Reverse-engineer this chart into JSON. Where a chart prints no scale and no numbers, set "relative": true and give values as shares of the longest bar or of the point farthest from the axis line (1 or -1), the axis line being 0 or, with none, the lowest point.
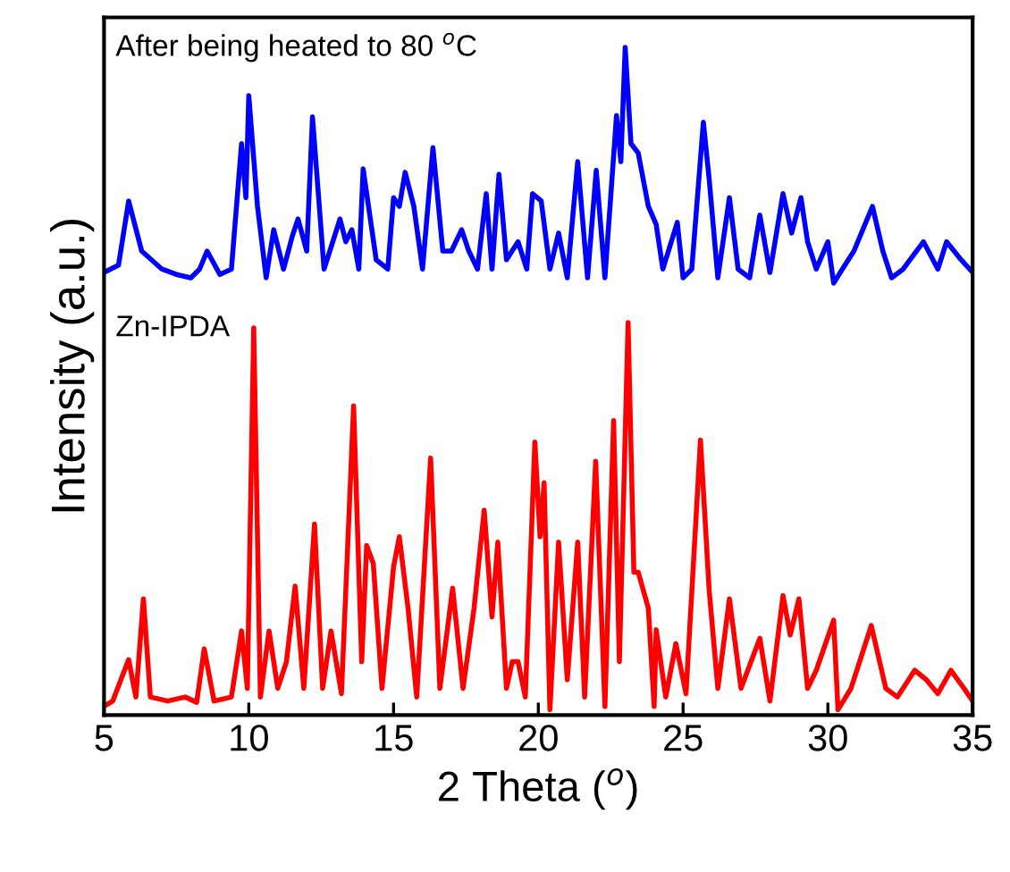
{
  "chart_data": {
    "type": "line",
    "relative": true,
    "xlabel": "2 Theta ($^{o}$)",
    "ylabel": "Intensity (a.u.)",
    "xlim": [
      5,
      35
    ],
    "xticks": [
      5,
      10,
      15,
      20,
      25,
      30,
      35
    ],
    "grid": false,
    "legend": false,
    "marker": "none",
    "line_style": "solid",
    "series": [
      {
        "name": "After being heated to 80 $^{o}$C",
        "color": "#0000ff",
        "x": [
          5.0,
          5.5,
          5.85,
          6.3,
          7.0,
          7.5,
          8.0,
          8.3,
          8.56,
          9.0,
          9.4,
          9.75,
          9.9,
          10.0,
          10.3,
          10.6,
          10.86,
          11.2,
          11.5,
          11.7,
          12.0,
          12.2,
          12.6,
          13.15,
          13.35,
          13.56,
          13.8,
          13.95,
          14.4,
          14.8,
          15.0,
          15.2,
          15.4,
          15.7,
          16.0,
          16.36,
          16.7,
          17.0,
          17.35,
          17.6,
          17.9,
          18.2,
          18.4,
          18.64,
          18.9,
          19.3,
          19.6,
          19.8,
          20.1,
          20.4,
          20.7,
          21.0,
          21.36,
          21.7,
          22.0,
          22.3,
          22.7,
          22.85,
          23.0,
          23.2,
          23.45,
          23.8,
          24.07,
          24.3,
          24.8,
          25.0,
          25.3,
          25.7,
          25.9,
          26.2,
          26.6,
          26.9,
          27.3,
          27.65,
          28.0,
          28.45,
          28.75,
          29.07,
          29.3,
          29.6,
          30.0,
          30.2,
          30.5,
          30.9,
          31.54,
          31.9,
          32.2,
          32.6,
          33.3,
          33.8,
          34.1,
          34.6,
          35.0
        ],
        "values": [
          0.663,
          0.674,
          0.77,
          0.695,
          0.668,
          0.66,
          0.655,
          0.668,
          0.695,
          0.66,
          0.668,
          0.856,
          0.775,
          0.928,
          0.762,
          0.655,
          0.727,
          0.668,
          0.717,
          0.743,
          0.695,
          0.896,
          0.668,
          0.743,
          0.709,
          0.727,
          0.668,
          0.818,
          0.682,
          0.668,
          0.775,
          0.762,
          0.813,
          0.762,
          0.668,
          0.85,
          0.695,
          0.695,
          0.727,
          0.695,
          0.668,
          0.781,
          0.668,
          0.81,
          0.682,
          0.709,
          0.668,
          0.781,
          0.77,
          0.668,
          0.722,
          0.655,
          0.829,
          0.655,
          0.816,
          0.655,
          0.898,
          0.829,
          1.0,
          0.856,
          0.842,
          0.762,
          0.735,
          0.668,
          0.738,
          0.655,
          0.668,
          0.888,
          0.803,
          0.655,
          0.775,
          0.668,
          0.655,
          0.749,
          0.663,
          0.781,
          0.722,
          0.775,
          0.709,
          0.668,
          0.709,
          0.647,
          0.668,
          0.695,
          0.762,
          0.695,
          0.655,
          0.668,
          0.709,
          0.668,
          0.709,
          0.682,
          0.663
        ]
      },
      {
        "name": "Zn-IPDA",
        "color": "#ff0000",
        "x": [
          5.0,
          5.3,
          5.85,
          6.1,
          6.36,
          6.6,
          7.2,
          7.8,
          8.2,
          8.46,
          8.8,
          9.4,
          9.75,
          9.95,
          10.17,
          10.4,
          10.7,
          11.0,
          11.3,
          11.6,
          11.9,
          12.27,
          12.55,
          12.84,
          13.2,
          13.62,
          13.9,
          14.07,
          14.3,
          14.6,
          15.0,
          15.2,
          15.5,
          15.8,
          16.28,
          16.6,
          17.04,
          17.4,
          17.78,
          18.13,
          18.4,
          18.6,
          18.9,
          19.1,
          19.3,
          19.55,
          19.88,
          20.06,
          20.2,
          20.4,
          20.7,
          21.0,
          21.36,
          21.6,
          21.98,
          22.3,
          22.6,
          22.8,
          23.1,
          23.3,
          23.45,
          23.8,
          24.0,
          24.07,
          24.4,
          24.75,
          25.1,
          25.6,
          25.9,
          26.2,
          26.6,
          27.0,
          27.65,
          28.0,
          28.45,
          28.7,
          29.0,
          29.3,
          29.6,
          30.2,
          30.35,
          30.8,
          31.5,
          32.0,
          32.4,
          33.0,
          33.4,
          33.8,
          34.25,
          34.7,
          35.0
        ],
        "values": [
          0.013,
          0.021,
          0.083,
          0.027,
          0.174,
          0.027,
          0.021,
          0.027,
          0.019,
          0.099,
          0.021,
          0.027,
          0.126,
          0.04,
          0.58,
          0.027,
          0.126,
          0.04,
          0.08,
          0.193,
          0.04,
          0.286,
          0.04,
          0.126,
          0.032,
          0.463,
          0.08,
          0.254,
          0.227,
          0.04,
          0.222,
          0.267,
          0.16,
          0.027,
          0.385,
          0.04,
          0.19,
          0.04,
          0.16,
          0.307,
          0.147,
          0.259,
          0.04,
          0.08,
          0.08,
          0.027,
          0.409,
          0.267,
          0.348,
          0.008,
          0.259,
          0.053,
          0.259,
          0.027,
          0.38,
          0.013,
          0.441,
          0.08,
          0.588,
          0.214,
          0.214,
          0.16,
          0.013,
          0.128,
          0.027,
          0.107,
          0.032,
          0.412,
          0.187,
          0.04,
          0.174,
          0.04,
          0.115,
          0.021,
          0.179,
          0.12,
          0.174,
          0.04,
          0.067,
          0.142,
          0.008,
          0.04,
          0.134,
          0.04,
          0.027,
          0.067,
          0.053,
          0.032,
          0.067,
          0.04,
          0.021
        ]
      }
    ]
  }
}
